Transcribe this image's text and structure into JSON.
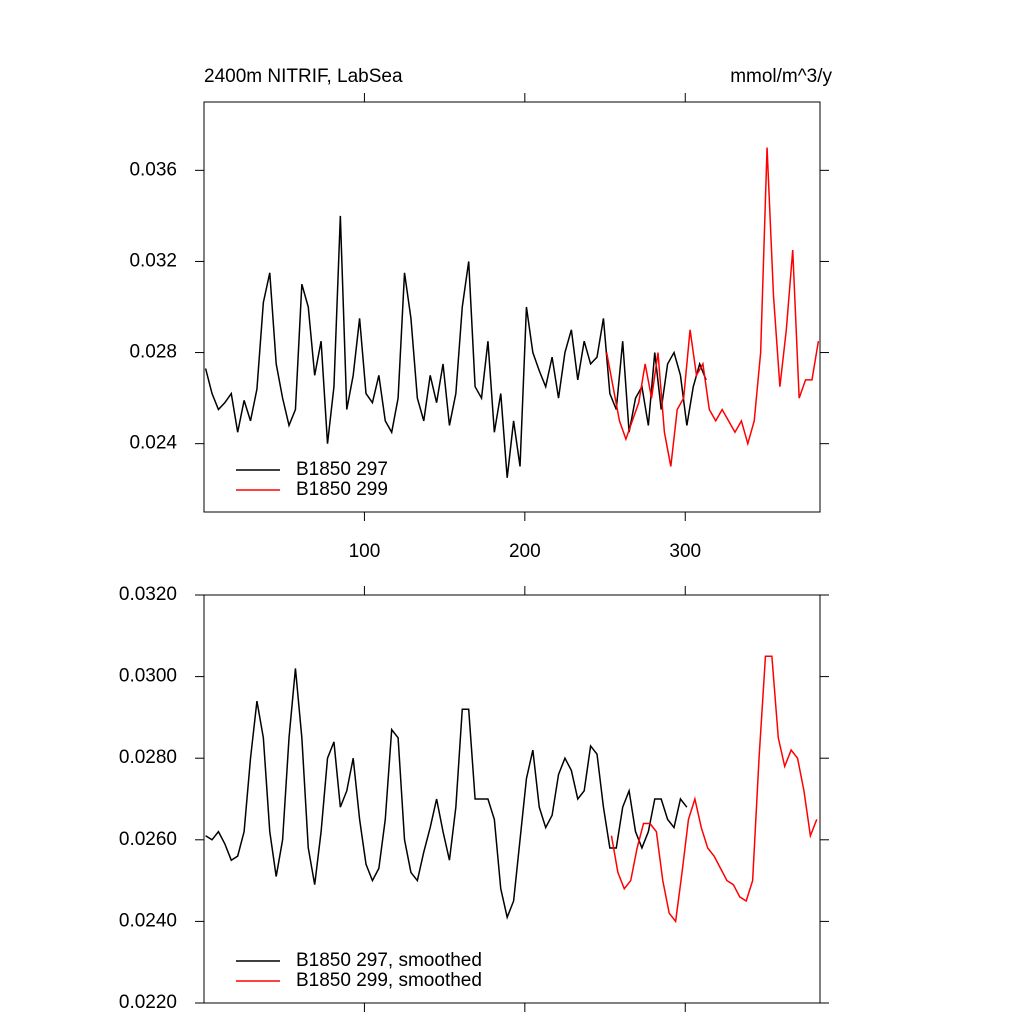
{
  "chart_data": [
    {
      "type": "line",
      "title": "2400m NITRIF, LabSea",
      "units": "mmol/m^3/y",
      "xlim": [
        0,
        384
      ],
      "xticks": [
        100,
        200,
        300
      ],
      "x_tick_labels": true,
      "ylim": [
        0.021,
        0.039
      ],
      "yticks": [
        0.024,
        0.028,
        0.032,
        0.036
      ],
      "legend": "lower left",
      "series": [
        {
          "name": "B1850 297",
          "color": "#000000",
          "x": [
            1,
            5,
            9,
            13,
            17,
            21,
            25,
            29,
            33,
            37,
            41,
            45,
            49,
            53,
            57,
            61,
            65,
            69,
            73,
            77,
            81,
            85,
            89,
            93,
            97,
            101,
            105,
            109,
            113,
            117,
            121,
            125,
            129,
            133,
            137,
            141,
            145,
            149,
            153,
            157,
            161,
            165,
            169,
            173,
            177,
            181,
            185,
            189,
            193,
            197,
            201,
            205,
            209,
            213,
            217,
            221,
            225,
            229,
            233,
            237,
            241,
            245,
            249,
            253,
            257,
            261,
            265,
            269,
            273,
            277,
            281,
            285,
            289,
            293,
            297,
            301,
            305,
            309,
            313
          ],
          "values": [
            0.0273,
            0.0262,
            0.0255,
            0.0258,
            0.0262,
            0.0245,
            0.0259,
            0.025,
            0.0264,
            0.0302,
            0.0315,
            0.0275,
            0.026,
            0.0248,
            0.0255,
            0.031,
            0.03,
            0.027,
            0.0285,
            0.024,
            0.0265,
            0.034,
            0.0255,
            0.027,
            0.0295,
            0.0262,
            0.0258,
            0.027,
            0.025,
            0.0245,
            0.026,
            0.0315,
            0.0295,
            0.026,
            0.025,
            0.027,
            0.0258,
            0.0275,
            0.0248,
            0.0262,
            0.03,
            0.032,
            0.0265,
            0.026,
            0.0285,
            0.0245,
            0.0262,
            0.0225,
            0.025,
            0.023,
            0.03,
            0.028,
            0.0272,
            0.0265,
            0.0278,
            0.026,
            0.028,
            0.029,
            0.0268,
            0.0285,
            0.0275,
            0.0278,
            0.0295,
            0.0262,
            0.0255,
            0.0285,
            0.0245,
            0.026,
            0.0265,
            0.0248,
            0.028,
            0.0255,
            0.0275,
            0.028,
            0.027,
            0.0248,
            0.0265,
            0.0275,
            0.0268
          ]
        },
        {
          "name": "B1850 299",
          "color": "#ff0000",
          "x": [
            251,
            255,
            259,
            263,
            267,
            271,
            275,
            279,
            283,
            287,
            291,
            295,
            299,
            303,
            307,
            311,
            315,
            319,
            323,
            327,
            331,
            335,
            339,
            343,
            347,
            351,
            355,
            359,
            363,
            367,
            371,
            375,
            379,
            383
          ],
          "values": [
            0.028,
            0.0265,
            0.025,
            0.0242,
            0.025,
            0.0258,
            0.0275,
            0.026,
            0.028,
            0.0245,
            0.023,
            0.0255,
            0.026,
            0.029,
            0.027,
            0.0275,
            0.0255,
            0.025,
            0.0255,
            0.025,
            0.0245,
            0.025,
            0.024,
            0.025,
            0.028,
            0.037,
            0.0305,
            0.0265,
            0.029,
            0.0325,
            0.026,
            0.0268,
            0.0268,
            0.0285
          ]
        }
      ]
    },
    {
      "type": "line",
      "xlim": [
        0,
        384
      ],
      "xticks": [
        100,
        200,
        300
      ],
      "x_tick_labels": false,
      "ylim": [
        0.022,
        0.032
      ],
      "yticks": [
        {
          "value": 0.022,
          "label": "0.0220"
        },
        {
          "value": 0.024,
          "label": "0.0240"
        },
        {
          "value": 0.026,
          "label": "0.0260"
        },
        {
          "value": 0.028,
          "label": "0.0280"
        },
        {
          "value": 0.03,
          "label": "0.0300"
        },
        {
          "value": 0.032,
          "label": "0.0320"
        }
      ],
      "legend": "lower left",
      "series": [
        {
          "name": "B1850 297, smoothed",
          "color": "#000000",
          "x": [
            1,
            5,
            9,
            13,
            17,
            21,
            25,
            29,
            33,
            37,
            41,
            45,
            49,
            53,
            57,
            61,
            65,
            69,
            73,
            77,
            81,
            85,
            89,
            93,
            97,
            101,
            105,
            109,
            113,
            117,
            121,
            125,
            129,
            133,
            137,
            141,
            145,
            149,
            153,
            157,
            161,
            165,
            169,
            173,
            177,
            181,
            185,
            189,
            193,
            197,
            201,
            205,
            209,
            213,
            217,
            221,
            225,
            229,
            233,
            237,
            241,
            245,
            249,
            253,
            257,
            261,
            265,
            269,
            273,
            277,
            281,
            285,
            289,
            293,
            297,
            301
          ],
          "values": [
            0.0261,
            0.026,
            0.0262,
            0.0259,
            0.0255,
            0.0256,
            0.0262,
            0.028,
            0.0294,
            0.0285,
            0.0262,
            0.0251,
            0.026,
            0.0285,
            0.0302,
            0.0285,
            0.0258,
            0.0249,
            0.0262,
            0.028,
            0.0284,
            0.0268,
            0.0272,
            0.028,
            0.0265,
            0.0254,
            0.025,
            0.0253,
            0.0265,
            0.0287,
            0.0285,
            0.026,
            0.0252,
            0.025,
            0.0257,
            0.0263,
            0.027,
            0.0262,
            0.0255,
            0.0268,
            0.0292,
            0.0292,
            0.027,
            0.027,
            0.027,
            0.0265,
            0.0248,
            0.0241,
            0.0245,
            0.026,
            0.0275,
            0.0282,
            0.0268,
            0.0263,
            0.0266,
            0.0276,
            0.028,
            0.0277,
            0.027,
            0.0272,
            0.0283,
            0.0281,
            0.0268,
            0.0258,
            0.0258,
            0.0268,
            0.0272,
            0.0262,
            0.0258,
            0.0262,
            0.027,
            0.027,
            0.0265,
            0.0263,
            0.027,
            0.0268
          ]
        },
        {
          "name": "B1850 299, smoothed",
          "color": "#ff0000",
          "x": [
            254,
            258,
            262,
            266,
            270,
            274,
            278,
            282,
            286,
            290,
            294,
            298,
            302,
            306,
            310,
            314,
            318,
            322,
            326,
            330,
            334,
            338,
            342,
            346,
            350,
            354,
            358,
            362,
            366,
            370,
            374,
            378,
            382
          ],
          "values": [
            0.0261,
            0.0252,
            0.0248,
            0.025,
            0.0258,
            0.0264,
            0.0264,
            0.0262,
            0.025,
            0.0242,
            0.024,
            0.0252,
            0.0265,
            0.027,
            0.0263,
            0.0258,
            0.0256,
            0.0253,
            0.025,
            0.0249,
            0.0246,
            0.0245,
            0.025,
            0.028,
            0.0305,
            0.0305,
            0.0285,
            0.0278,
            0.0282,
            0.028,
            0.0272,
            0.0261,
            0.0265
          ]
        }
      ]
    }
  ]
}
